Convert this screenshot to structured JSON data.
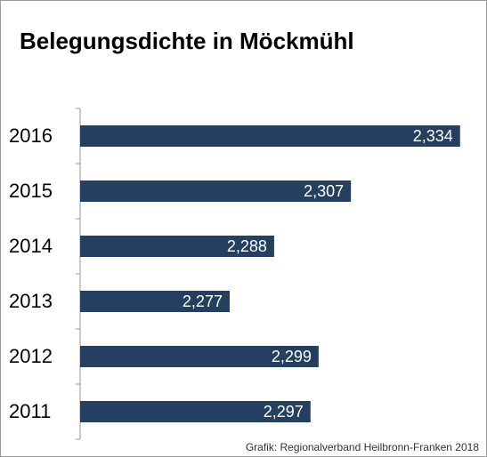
{
  "chart_data": {
    "type": "bar",
    "orientation": "horizontal",
    "title": "Belegungsdichte in Möckmühl",
    "source": "Grafik: Regionalverband Heilbronn-Franken 2018",
    "categories": [
      "2016",
      "2015",
      "2014",
      "2013",
      "2012",
      "2011"
    ],
    "values": [
      2.334,
      2.307,
      2.288,
      2.277,
      2.299,
      2.297
    ],
    "value_labels": [
      "2,334",
      "2,307",
      "2,288",
      "2,277",
      "2,299",
      "2,297"
    ],
    "color": "#243f60",
    "xlim": [
      2.24,
      2.34
    ]
  }
}
